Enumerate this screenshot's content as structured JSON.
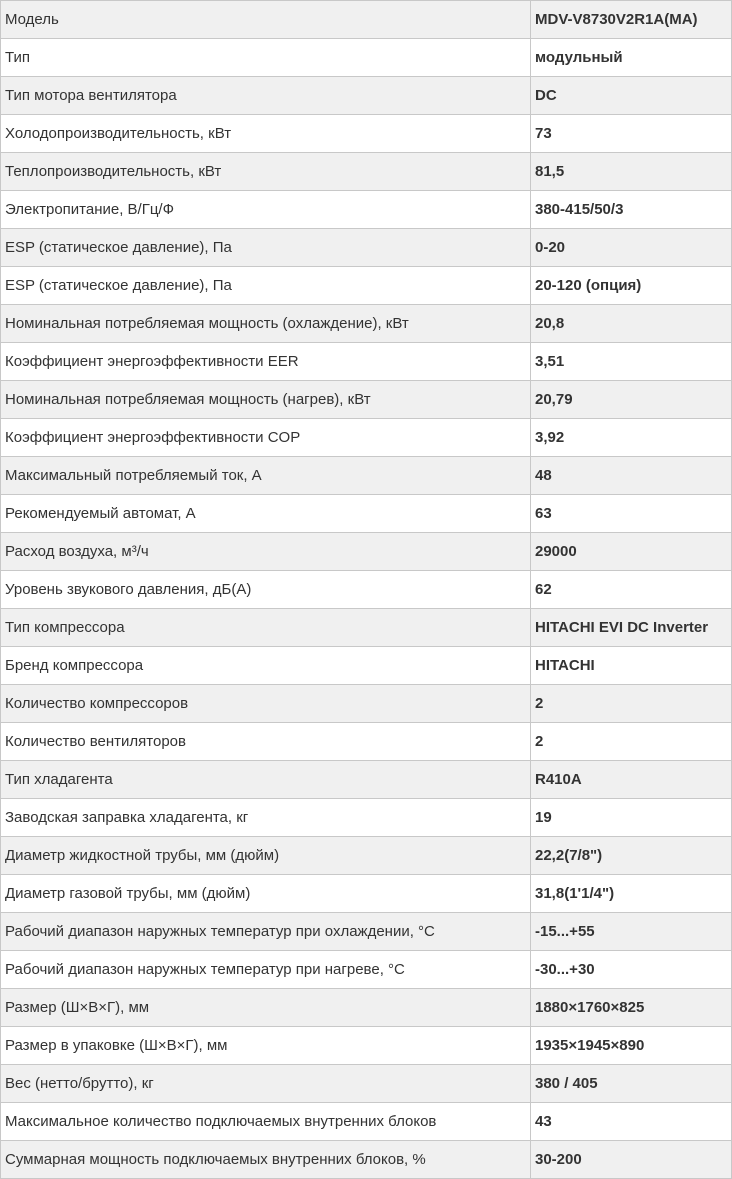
{
  "specs": [
    {
      "param": "Модель",
      "value": "MDV-V8730V2R1A(MA)"
    },
    {
      "param": "Тип",
      "value": "модульный"
    },
    {
      "param": "Тип мотора вентилятора",
      "value": "DC"
    },
    {
      "param": "Холодопроизводительность, кВт",
      "value": "73"
    },
    {
      "param": "Теплопроизводительность, кВт",
      "value": "81,5"
    },
    {
      "param": "Электропитание, В/Гц/Ф",
      "value": "380-415/50/3"
    },
    {
      "param": "ESP (статическое давление), Па",
      "value": "0-20"
    },
    {
      "param": "ESP (статическое давление), Па",
      "value": "20-120 (опция)"
    },
    {
      "param": "Номинальная потребляемая мощность (охлаждение), кВт",
      "value": "20,8"
    },
    {
      "param": "Коэффициент энергоэффективности EER",
      "value": "3,51"
    },
    {
      "param": "Номинальная потребляемая мощность (нагрев), кВт",
      "value": "20,79"
    },
    {
      "param": "Коэффициент энергоэффективности COP",
      "value": "3,92"
    },
    {
      "param": "Максимальный потребляемый ток, А",
      "value": "48"
    },
    {
      "param": "Рекомендуемый автомат, А",
      "value": "63"
    },
    {
      "param": "Расход воздуха, м³/ч",
      "value": "29000"
    },
    {
      "param": "Уровень звукового давления, дБ(А)",
      "value": "62"
    },
    {
      "param": "Тип компрессора",
      "value": "HITACHI EVI DC Inverter"
    },
    {
      "param": "Бренд компрессора",
      "value": "HITACHI"
    },
    {
      "param": "Количество компрессоров",
      "value": "2"
    },
    {
      "param": "Количество вентиляторов",
      "value": "2"
    },
    {
      "param": "Тип хладагента",
      "value": "R410A"
    },
    {
      "param": "Заводская заправка хладагента, кг",
      "value": "19"
    },
    {
      "param": "Диаметр жидкостной трубы, мм (дюйм)",
      "value": "22,2(7/8\")"
    },
    {
      "param": "Диаметр газовой трубы, мм (дюйм)",
      "value": "31,8(1'1/4\")"
    },
    {
      "param": "Рабочий диапазон наружных температур при охлаждении, °С",
      "value": "-15...+55"
    },
    {
      "param": "Рабочий диапазон наружных температур при нагреве, °С",
      "value": "-30...+30"
    },
    {
      "param": "Размер (Ш×В×Г), мм",
      "value": "1880×1760×825"
    },
    {
      "param": "Размер в упаковке (Ш×В×Г), мм",
      "value": "1935×1945×890"
    },
    {
      "param": "Вес (нетто/брутто), кг",
      "value": "380 / 405"
    },
    {
      "param": "Максимальное количество подключаемых внутренних блоков",
      "value": "43"
    },
    {
      "param": "Суммарная мощность подключаемых внутренних блоков, %",
      "value": "30-200"
    }
  ]
}
